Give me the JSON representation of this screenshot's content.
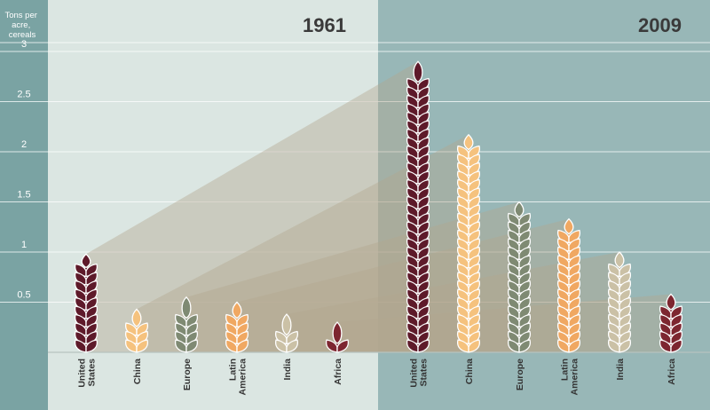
{
  "chart_data": {
    "type": "bar",
    "ylabel_lines": [
      "Tons per",
      "acre,",
      "cereals"
    ],
    "yticks": [
      "0.5",
      "1",
      "1.5",
      "2",
      "2.5",
      "3"
    ],
    "ylim": [
      0,
      3.3
    ],
    "grid": true,
    "categories": [
      "United States",
      "China",
      "Europe",
      "Latin America",
      "India",
      "Africa"
    ],
    "category_lines": [
      [
        "United",
        "States"
      ],
      [
        "China"
      ],
      [
        "Europe"
      ],
      [
        "Latin",
        "America"
      ],
      [
        "India"
      ],
      [
        "Africa"
      ]
    ],
    "colors": [
      "#5e1a2a",
      "#f5c27e",
      "#7f8a73",
      "#f0a862",
      "#cbc1a6",
      "#7d2630"
    ],
    "series": [
      {
        "name": "1961",
        "values": [
          0.98,
          0.43,
          0.55,
          0.5,
          0.38,
          0.3
        ]
      },
      {
        "name": "2009",
        "values": [
          2.9,
          2.17,
          1.5,
          1.33,
          1.0,
          0.58
        ]
      }
    ]
  },
  "colors": {
    "left_panel": "#dbe6e2",
    "right_panel": "#98b7b7",
    "axis_panel": "#7aa3a3",
    "link": "#b2a68f"
  }
}
